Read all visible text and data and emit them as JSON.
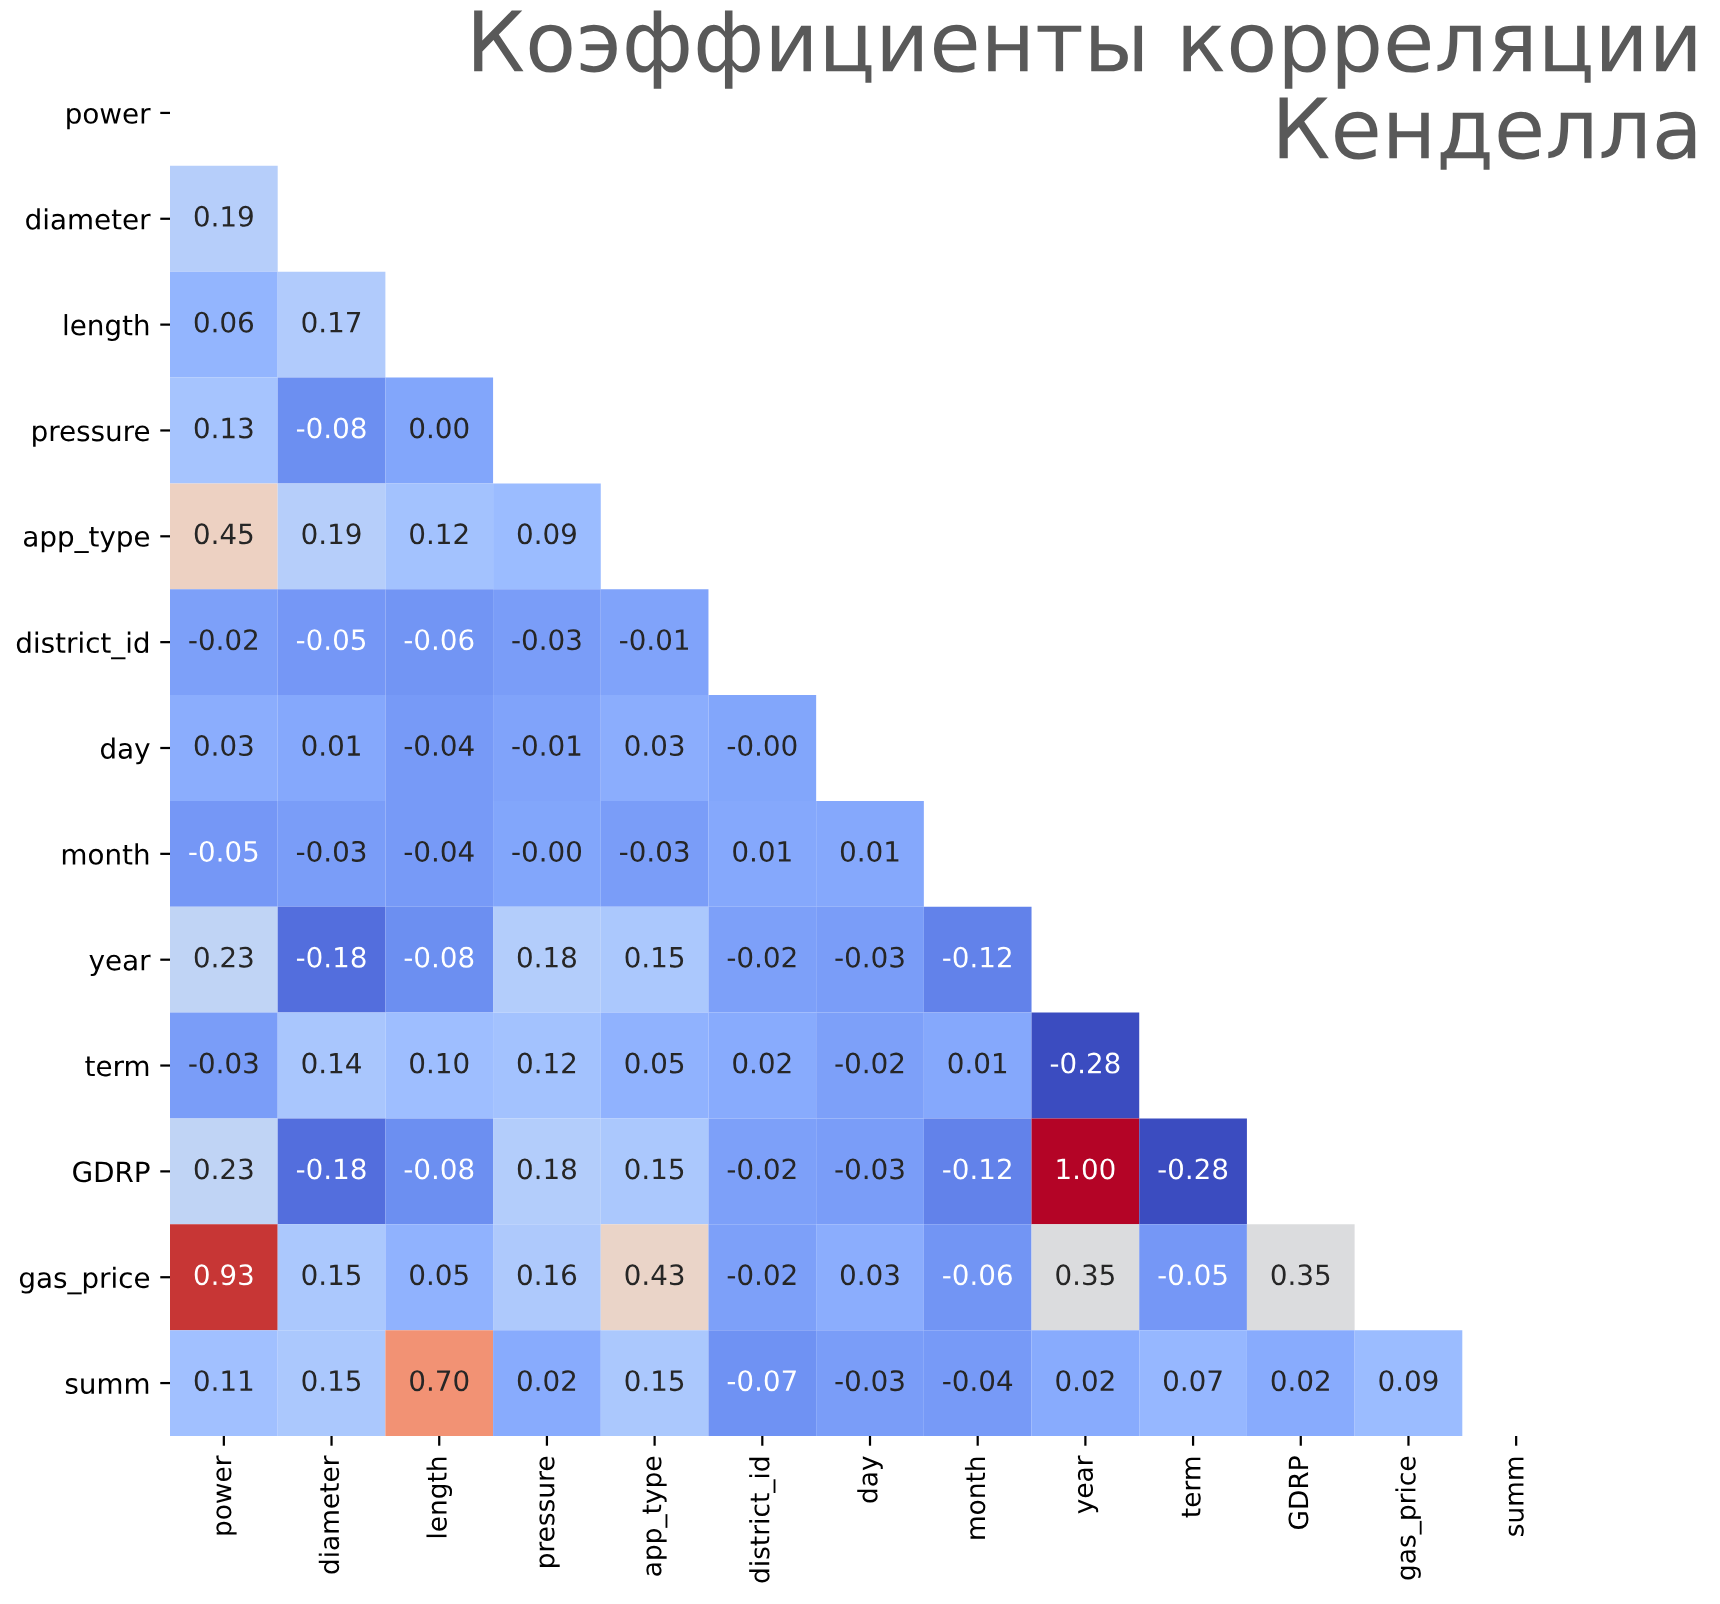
{
  "chart_data": {
    "type": "heatmap",
    "title": "Коэффициенты корреляции\nКенделла",
    "categories": [
      "power",
      "diameter",
      "length",
      "pressure",
      "app_type",
      "district_id",
      "day",
      "month",
      "year",
      "term",
      "GDRP",
      "gas_price",
      "summ"
    ],
    "y_categories": [
      "power",
      "diameter",
      "length",
      "pressure",
      "app_type",
      "district_id",
      "day",
      "month",
      "year",
      "term",
      "GDRP",
      "gas_price",
      "summ"
    ],
    "cells": [
      [
        null,
        null,
        null,
        null,
        null,
        null,
        null,
        null,
        null,
        null,
        null,
        null,
        null
      ],
      [
        0.19,
        null,
        null,
        null,
        null,
        null,
        null,
        null,
        null,
        null,
        null,
        null,
        null
      ],
      [
        0.06,
        0.17,
        null,
        null,
        null,
        null,
        null,
        null,
        null,
        null,
        null,
        null,
        null
      ],
      [
        0.13,
        -0.08,
        0.0,
        null,
        null,
        null,
        null,
        null,
        null,
        null,
        null,
        null,
        null
      ],
      [
        0.45,
        0.19,
        0.12,
        0.09,
        null,
        null,
        null,
        null,
        null,
        null,
        null,
        null,
        null
      ],
      [
        -0.02,
        -0.05,
        -0.06,
        -0.03,
        -0.01,
        null,
        null,
        null,
        null,
        null,
        null,
        null,
        null
      ],
      [
        0.03,
        0.01,
        -0.04,
        -0.01,
        0.03,
        -0.0,
        null,
        null,
        null,
        null,
        null,
        null,
        null
      ],
      [
        -0.05,
        -0.03,
        -0.04,
        -0.0,
        -0.03,
        0.01,
        0.01,
        null,
        null,
        null,
        null,
        null,
        null
      ],
      [
        0.23,
        -0.18,
        -0.08,
        0.18,
        0.15,
        -0.02,
        -0.03,
        -0.12,
        null,
        null,
        null,
        null,
        null
      ],
      [
        -0.03,
        0.14,
        0.1,
        0.12,
        0.05,
        0.02,
        -0.02,
        0.01,
        -0.28,
        null,
        null,
        null,
        null
      ],
      [
        0.23,
        -0.18,
        -0.08,
        0.18,
        0.15,
        -0.02,
        -0.03,
        -0.12,
        1.0,
        -0.28,
        null,
        null,
        null
      ],
      [
        0.93,
        0.15,
        0.05,
        0.16,
        0.43,
        -0.02,
        0.03,
        -0.06,
        0.35,
        -0.05,
        0.35,
        null,
        null
      ],
      [
        0.11,
        0.15,
        0.7,
        0.02,
        0.15,
        -0.07,
        -0.03,
        -0.04,
        0.02,
        0.07,
        0.02,
        0.09,
        null
      ]
    ],
    "cell_labels": [
      [
        null,
        null,
        null,
        null,
        null,
        null,
        null,
        null,
        null,
        null,
        null,
        null,
        null
      ],
      [
        "0.19",
        null,
        null,
        null,
        null,
        null,
        null,
        null,
        null,
        null,
        null,
        null,
        null
      ],
      [
        "0.06",
        "0.17",
        null,
        null,
        null,
        null,
        null,
        null,
        null,
        null,
        null,
        null,
        null
      ],
      [
        "0.13",
        "-0.08",
        "0.00",
        null,
        null,
        null,
        null,
        null,
        null,
        null,
        null,
        null,
        null
      ],
      [
        "0.45",
        "0.19",
        "0.12",
        "0.09",
        null,
        null,
        null,
        null,
        null,
        null,
        null,
        null,
        null
      ],
      [
        "-0.02",
        "-0.05",
        "-0.06",
        "-0.03",
        "-0.01",
        null,
        null,
        null,
        null,
        null,
        null,
        null,
        null
      ],
      [
        "0.03",
        "0.01",
        "-0.04",
        "-0.01",
        "0.03",
        "-0.00",
        null,
        null,
        null,
        null,
        null,
        null,
        null
      ],
      [
        "-0.05",
        "-0.03",
        "-0.04",
        "-0.00",
        "-0.03",
        "0.01",
        "0.01",
        null,
        null,
        null,
        null,
        null,
        null
      ],
      [
        "0.23",
        "-0.18",
        "-0.08",
        "0.18",
        "0.15",
        "-0.02",
        "-0.03",
        "-0.12",
        null,
        null,
        null,
        null,
        null
      ],
      [
        "-0.03",
        "0.14",
        "0.10",
        "0.12",
        "0.05",
        "0.02",
        "-0.02",
        "0.01",
        "-0.28",
        null,
        null,
        null,
        null
      ],
      [
        "0.23",
        "-0.18",
        "-0.08",
        "0.18",
        "0.15",
        "-0.02",
        "-0.03",
        "-0.12",
        "1.00",
        "-0.28",
        null,
        null,
        null
      ],
      [
        "0.93",
        "0.15",
        "0.05",
        "0.16",
        "0.43",
        "-0.02",
        "0.03",
        "-0.06",
        "0.35",
        "-0.05",
        "0.35",
        null,
        null
      ],
      [
        "0.11",
        "0.15",
        "0.70",
        "0.02",
        "0.15",
        "-0.07",
        "-0.03",
        "-0.04",
        "0.02",
        "0.07",
        "0.02",
        "0.09",
        null
      ]
    ]
  }
}
